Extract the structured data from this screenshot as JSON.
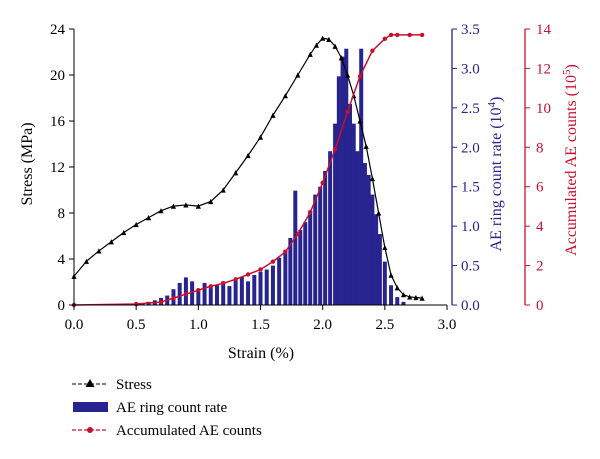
{
  "chart_data": {
    "type": "bar",
    "x_axis": {
      "label": "Strain (%)",
      "range": [
        0.0,
        3.0
      ],
      "ticks": [
        "0.0",
        "0.5",
        "1.0",
        "1.5",
        "2.0",
        "2.5",
        "3.0"
      ]
    },
    "y_axis_left": {
      "label": "Stress (MPa)",
      "range": [
        0,
        24
      ],
      "ticks": [
        "0",
        "4",
        "8",
        "12",
        "16",
        "20",
        "24"
      ]
    },
    "y_axis_right1": {
      "label": "AE ring count rate (10",
      "exponent": "4",
      "label_close": ")",
      "range": [
        0.0,
        3.5
      ],
      "ticks": [
        "0.0",
        "0.5",
        "1.0",
        "1.5",
        "2.0",
        "2.5",
        "3.0",
        "3.5"
      ]
    },
    "y_axis_right2": {
      "label": "Accumulated AE counts (10",
      "exponent": "5",
      "label_close": ")",
      "range": [
        0,
        14
      ],
      "ticks": [
        "0",
        "2",
        "4",
        "6",
        "8",
        "10",
        "12",
        "14"
      ]
    },
    "series": [
      {
        "name": "Stress",
        "type": "line",
        "axis": "left",
        "color": "#000000",
        "marker": "triangle",
        "x": [
          0.0,
          0.1,
          0.2,
          0.3,
          0.4,
          0.5,
          0.6,
          0.7,
          0.8,
          0.9,
          1.0,
          1.1,
          1.2,
          1.3,
          1.4,
          1.5,
          1.6,
          1.7,
          1.8,
          1.9,
          1.95,
          2.0,
          2.05,
          2.1,
          2.15,
          2.2,
          2.25,
          2.3,
          2.35,
          2.4,
          2.45,
          2.5,
          2.55,
          2.6,
          2.65,
          2.7,
          2.75,
          2.8
        ],
        "y": [
          2.5,
          3.8,
          4.7,
          5.5,
          6.3,
          7.0,
          7.6,
          8.2,
          8.6,
          8.7,
          8.6,
          9.0,
          10.0,
          11.5,
          13.0,
          14.6,
          16.5,
          18.2,
          20.0,
          21.8,
          22.6,
          23.2,
          23.1,
          22.5,
          21.5,
          20.0,
          18.2,
          16.0,
          13.8,
          11.0,
          8.0,
          5.0,
          2.6,
          1.5,
          0.9,
          0.7,
          0.65,
          0.6
        ]
      },
      {
        "name": "AE ring count rate",
        "type": "bar",
        "axis": "right1",
        "color": "#27238f",
        "x": [
          0.55,
          0.6,
          0.65,
          0.7,
          0.75,
          0.8,
          0.85,
          0.9,
          0.95,
          1.0,
          1.05,
          1.1,
          1.15,
          1.2,
          1.25,
          1.3,
          1.35,
          1.4,
          1.45,
          1.5,
          1.55,
          1.6,
          1.65,
          1.7,
          1.74,
          1.78,
          1.82,
          1.86,
          1.9,
          1.94,
          1.98,
          2.02,
          2.06,
          2.1,
          2.13,
          2.16,
          2.19,
          2.22,
          2.25,
          2.28,
          2.31,
          2.34,
          2.37,
          2.4,
          2.43,
          2.46,
          2.5,
          2.55,
          2.6,
          2.65
        ],
        "values": [
          0.02,
          0.04,
          0.06,
          0.09,
          0.12,
          0.2,
          0.28,
          0.35,
          0.3,
          0.2,
          0.28,
          0.22,
          0.25,
          0.3,
          0.24,
          0.32,
          0.36,
          0.3,
          0.38,
          0.42,
          0.45,
          0.5,
          0.6,
          0.7,
          0.85,
          1.45,
          0.95,
          1.05,
          1.2,
          1.4,
          1.5,
          1.7,
          1.95,
          2.3,
          2.9,
          3.15,
          3.25,
          2.55,
          2.3,
          1.95,
          3.25,
          1.8,
          1.65,
          1.4,
          1.15,
          0.9,
          0.55,
          0.25,
          0.1,
          0.04
        ]
      },
      {
        "name": "Accumulated AE counts",
        "type": "line",
        "axis": "right2",
        "color": "#c8102e",
        "marker": "circle",
        "x": [
          0.0,
          0.5,
          0.7,
          0.8,
          0.9,
          1.0,
          1.1,
          1.2,
          1.3,
          1.4,
          1.5,
          1.6,
          1.7,
          1.8,
          1.9,
          2.0,
          2.1,
          2.2,
          2.3,
          2.4,
          2.5,
          2.55,
          2.6,
          2.7,
          2.8
        ],
        "y": [
          0.0,
          0.05,
          0.15,
          0.35,
          0.55,
          0.75,
          0.95,
          1.1,
          1.3,
          1.55,
          1.8,
          2.2,
          2.7,
          3.6,
          4.7,
          6.2,
          7.9,
          9.8,
          11.6,
          12.9,
          13.5,
          13.7,
          13.7,
          13.7,
          13.7
        ]
      }
    ],
    "legend": {
      "placement": "bottom-left",
      "entries": [
        "Stress",
        "AE ring count rate",
        "Accumulated AE counts"
      ]
    },
    "colors": {
      "stress": "#000000",
      "ae_rate": "#27238f",
      "ae_rate_axis": "#27238f",
      "accumulated": "#c8102e",
      "accumulated_axis": "#c8102e"
    }
  }
}
